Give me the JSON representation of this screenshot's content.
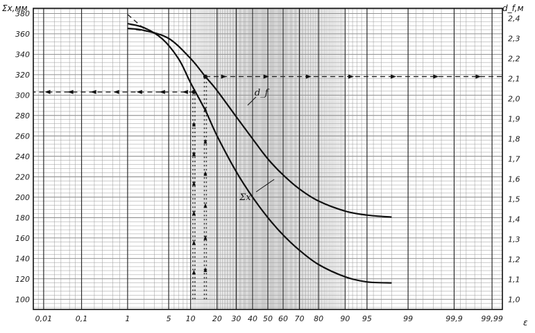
{
  "chart_data": {
    "type": "line",
    "title": "",
    "xlabel": "ε",
    "x_scale": "probability",
    "x_ticks": [
      "0,01",
      "0,1",
      "1",
      "5",
      "10",
      "20",
      "30",
      "40",
      "50",
      "60",
      "70",
      "80",
      "90",
      "95",
      "99",
      "99,9",
      "99,99"
    ],
    "y_left": {
      "label": "Σx,мм",
      "range": [
        90,
        385
      ],
      "ticks": [
        "100",
        "120",
        "140",
        "160",
        "180",
        "200",
        "220",
        "240",
        "260",
        "280",
        "300",
        "320",
        "340",
        "360",
        "380"
      ]
    },
    "y_right": {
      "label": "d_f,м",
      "range": [
        0.95,
        2.45
      ],
      "ticks": [
        "1,0",
        "1,1",
        "1,2",
        "1,3",
        "1,4",
        "1,5",
        "1,6",
        "1,7",
        "1,8",
        "1,9",
        "2,0",
        "2,1",
        "2,2",
        "2,3",
        "2,4"
      ]
    },
    "series": [
      {
        "name": "Σx",
        "axis": "left",
        "x": [
          1,
          2,
          4,
          7,
          10,
          15,
          20,
          30,
          40,
          50,
          60,
          70,
          80,
          90,
          95,
          98
        ],
        "y": [
          370,
          366,
          355,
          335,
          312,
          285,
          260,
          225,
          200,
          180,
          163,
          148,
          134,
          122,
          117,
          116
        ]
      },
      {
        "name": "d_f",
        "axis": "right",
        "x": [
          1,
          2,
          5,
          10,
          15,
          20,
          30,
          40,
          50,
          60,
          70,
          80,
          90,
          95,
          98
        ],
        "y": [
          2.35,
          2.34,
          2.3,
          2.2,
          2.11,
          2.04,
          1.91,
          1.8,
          1.7,
          1.62,
          1.55,
          1.49,
          1.44,
          1.42,
          1.41
        ]
      }
    ],
    "annotations": [
      {
        "type": "hline",
        "axis": "left",
        "y": 303,
        "x_from": 11,
        "x_to": 0.005,
        "direction": "left"
      },
      {
        "type": "vline",
        "x": 11,
        "y_from": 100,
        "y_to": 303,
        "direction": "up"
      },
      {
        "type": "hline",
        "axis": "right",
        "y": 2.11,
        "x_from": 15,
        "x_to": 99.995,
        "direction": "right"
      },
      {
        "type": "vline",
        "x": 15,
        "y_from": 100,
        "y_to": 320,
        "direction": "up"
      },
      {
        "type": "dashed",
        "axis": "left",
        "x": [
          1,
          2
        ],
        "y": [
          379,
          365
        ]
      },
      {
        "type": "dashed",
        "axis": "right",
        "x": [
          1,
          3
        ],
        "y": [
          2.35,
          2.33
        ]
      }
    ],
    "grid": true,
    "legend": "none"
  }
}
